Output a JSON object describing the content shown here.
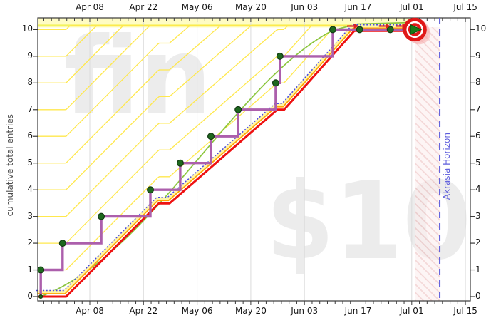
{
  "axes": {
    "x_labels": [
      "Apr 08",
      "Apr 22",
      "May 06",
      "May 20",
      "Jun 03",
      "Jun 17",
      "Jul 01",
      "Jul 15"
    ],
    "y_labels": [
      "0",
      "1",
      "2",
      "3",
      "4",
      "5",
      "6",
      "7",
      "8",
      "9",
      "10"
    ],
    "y_axis_label": "cumulative total entries"
  },
  "watermarks": {
    "goal_name": "fin",
    "pledge": "$10"
  },
  "annotations": {
    "akrasia_horizon_label": "Akrasia Horizon"
  },
  "colors": {
    "steppy": "#AC5FAC",
    "datapoint_fill": "#1E681E",
    "datapoint_edge": "#123812",
    "red_line": "#EE1111",
    "orange_line": "#FFA500",
    "lane_yellow": "#FFF5A6",
    "blue_dotted": "#4646E8",
    "trend_green": "#8CC63F",
    "guideline": "#FFE84D",
    "band_fill": "#FFFCC4",
    "band_pile": "#F3F35E",
    "gridline": "#DBDBDB",
    "frame": "#3A3A3A",
    "akrasia_line": "#5C5CDC",
    "arrow_red": "#E02020",
    "bull_red": "#E01818",
    "bull_green": "#177A17",
    "glow_pink": "#F5A5A5",
    "watermark": "#ECECEC"
  },
  "chart_data": {
    "type": "line",
    "title": "",
    "xlabel": "",
    "ylabel": "cumulative total entries",
    "x_range": [
      "Mar 25",
      "Jul 17"
    ],
    "ylim": [
      0,
      10
    ],
    "x_tick_interval_days": 14,
    "grid": "vertical gridlines at each 14-day tick",
    "series": [
      {
        "name": "datapoints-steppy",
        "style": "purple step line with dark-green datapoint dots",
        "points": [
          {
            "date": "Mar 26",
            "d": -12.8,
            "value": 0
          },
          {
            "date": "Mar 26",
            "d": -12.8,
            "value": 1
          },
          {
            "date": "Apr 01",
            "d": -7.1,
            "value": 2
          },
          {
            "date": "Apr 11",
            "d": 3.0,
            "value": 3
          },
          {
            "date": "Apr 24",
            "d": 15.8,
            "value": 4
          },
          {
            "date": "May 02",
            "d": 23.6,
            "value": 5
          },
          {
            "date": "May 10",
            "d": 31.6,
            "value": 6
          },
          {
            "date": "May 17",
            "d": 38.7,
            "value": 7
          },
          {
            "date": "May 27",
            "d": 48.5,
            "value": 8
          },
          {
            "date": "May 28",
            "d": 49.6,
            "value": 9
          },
          {
            "date": "Jun 10",
            "d": 63.4,
            "value": 10
          },
          {
            "date": "Jun 17",
            "d": 70.4,
            "value": 10
          },
          {
            "date": "Jun 25",
            "d": 78.4,
            "value": 10
          },
          {
            "date": "Jun 29",
            "d": 82.5,
            "value": 10
          },
          {
            "date": "Jul 01",
            "d": 84.8,
            "value": 10
          }
        ]
      },
      {
        "name": "commitment-road-red",
        "style": "thick red line flanked by orange line, yellow lane and blue dotted line",
        "points": [
          {
            "d": -13.4,
            "value": 0
          },
          {
            "d": -6.2,
            "value": 0
          },
          {
            "d": 18.0,
            "value": 3.49
          },
          {
            "d": 20.8,
            "value": 3.49
          },
          {
            "d": 48.9,
            "value": 7.0
          },
          {
            "d": 50.7,
            "value": 7.0
          },
          {
            "d": 69.0,
            "value": 9.95
          },
          {
            "d": 84.8,
            "value": 9.95
          }
        ]
      },
      {
        "name": "trend-green",
        "style": "smooth light-green curve rising from 0 to 10"
      }
    ],
    "goal": {
      "value": 10,
      "date": "Jul 01",
      "marker": "red/white bullseye with green right arrow"
    },
    "akrasia_horizon": {
      "date": "Jul 08",
      "days_after_apr08": 91.3
    },
    "flat_spot_arrows_days": [
      69.0,
      77.3,
      81.6
    ],
    "guidelines": {
      "count": 10,
      "spacing_units": 1,
      "clamp_value": 10.15
    }
  }
}
